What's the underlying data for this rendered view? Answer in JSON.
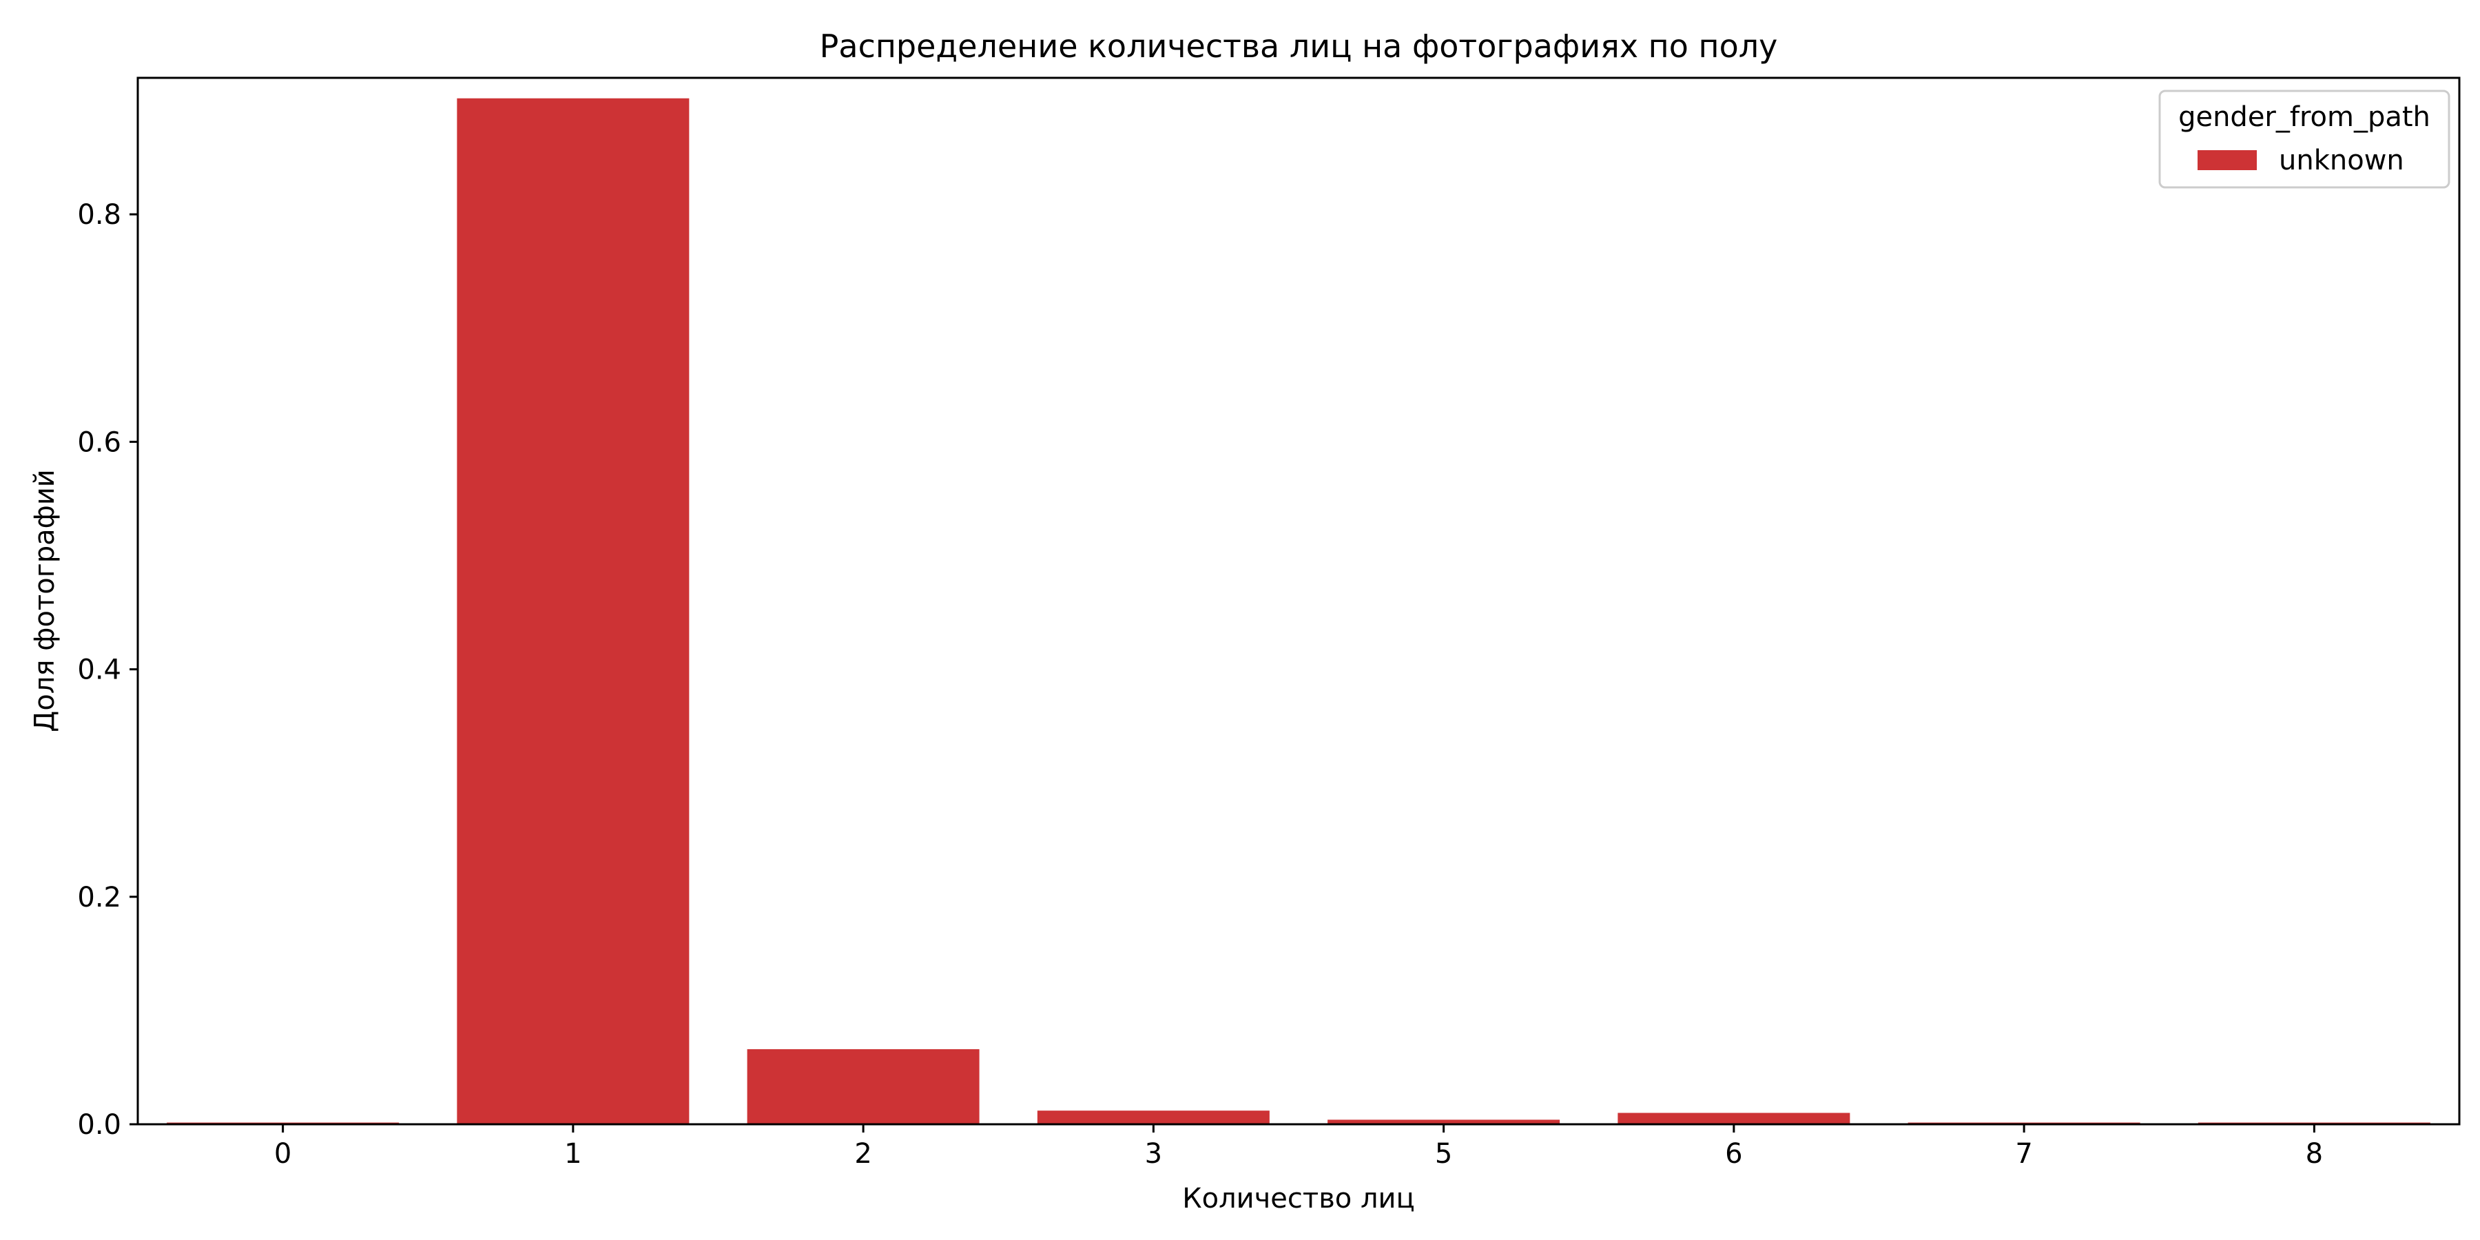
{
  "chart_data": {
    "type": "bar",
    "title": "Распределение количества лиц на фотографиях по полу",
    "xlabel": "Количество лиц",
    "ylabel": "Доля фотографий",
    "categories": [
      "0",
      "1",
      "2",
      "3",
      "5",
      "6",
      "7",
      "8"
    ],
    "series": [
      {
        "name": "unknown",
        "color": "#cd3335",
        "values": [
          0.0015,
          0.902,
          0.066,
          0.012,
          0.004,
          0.01,
          0.0015,
          0.0015
        ]
      }
    ],
    "ylim": [
      0,
      0.92
    ],
    "yticks": [
      0.0,
      0.2,
      0.4,
      0.6,
      0.8
    ],
    "ytick_labels": [
      "0.0",
      "0.2",
      "0.4",
      "0.6",
      "0.8"
    ],
    "grid": false,
    "legend": {
      "title": "gender_from_path",
      "placement": "top-right"
    }
  }
}
